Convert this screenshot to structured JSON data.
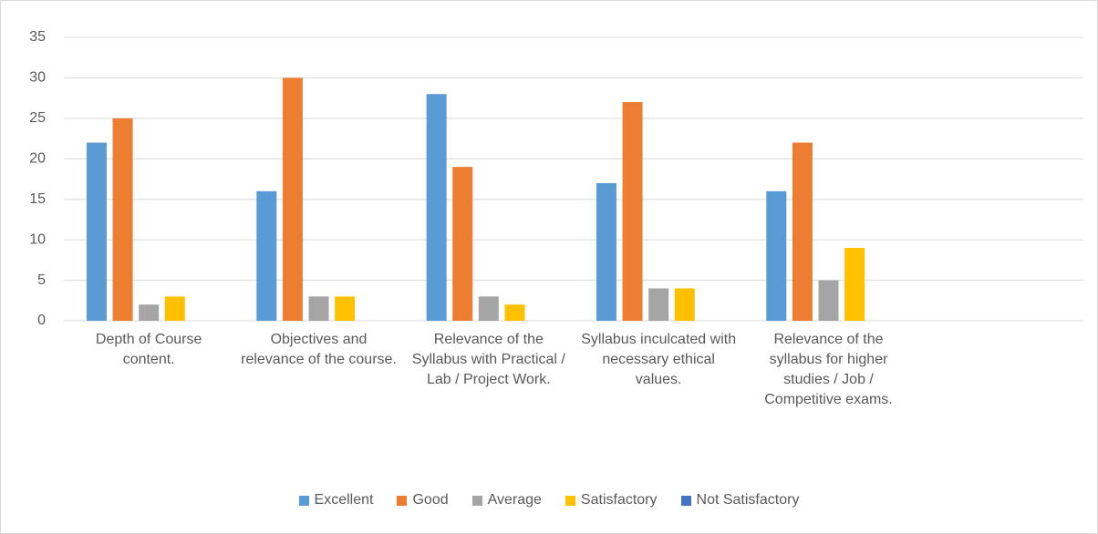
{
  "chart_data": {
    "type": "bar",
    "categories": [
      "Depth of Course content.",
      "Objectives and relevance of the course.",
      "Relevance of the Syllabus with Practical / Lab / Project Work.",
      "Syllabus inculcated with necessary ethical values.",
      "Relevance of the syllabus for higher studies / Job / Competitive exams.",
      null
    ],
    "series": [
      {
        "name": "Excellent",
        "color": "#5b9bd5",
        "values": [
          22,
          16,
          28,
          17,
          16,
          null
        ]
      },
      {
        "name": "Good",
        "color": "#ed7d31",
        "values": [
          25,
          30,
          19,
          27,
          22,
          null
        ]
      },
      {
        "name": "Average",
        "color": "#a5a5a5",
        "values": [
          2,
          3,
          3,
          4,
          5,
          null
        ]
      },
      {
        "name": "Satisfactory",
        "color": "#ffc000",
        "values": [
          3,
          3,
          2,
          4,
          9,
          null
        ]
      },
      {
        "name": "Not Satisfactory",
        "color": "#4472c4",
        "values": [
          0,
          0,
          0,
          0,
          0,
          null
        ]
      }
    ],
    "ylim": [
      0,
      35
    ],
    "yticks": [
      0,
      5,
      10,
      15,
      20,
      25,
      30,
      35
    ],
    "grid": true,
    "legend": "bottom"
  }
}
